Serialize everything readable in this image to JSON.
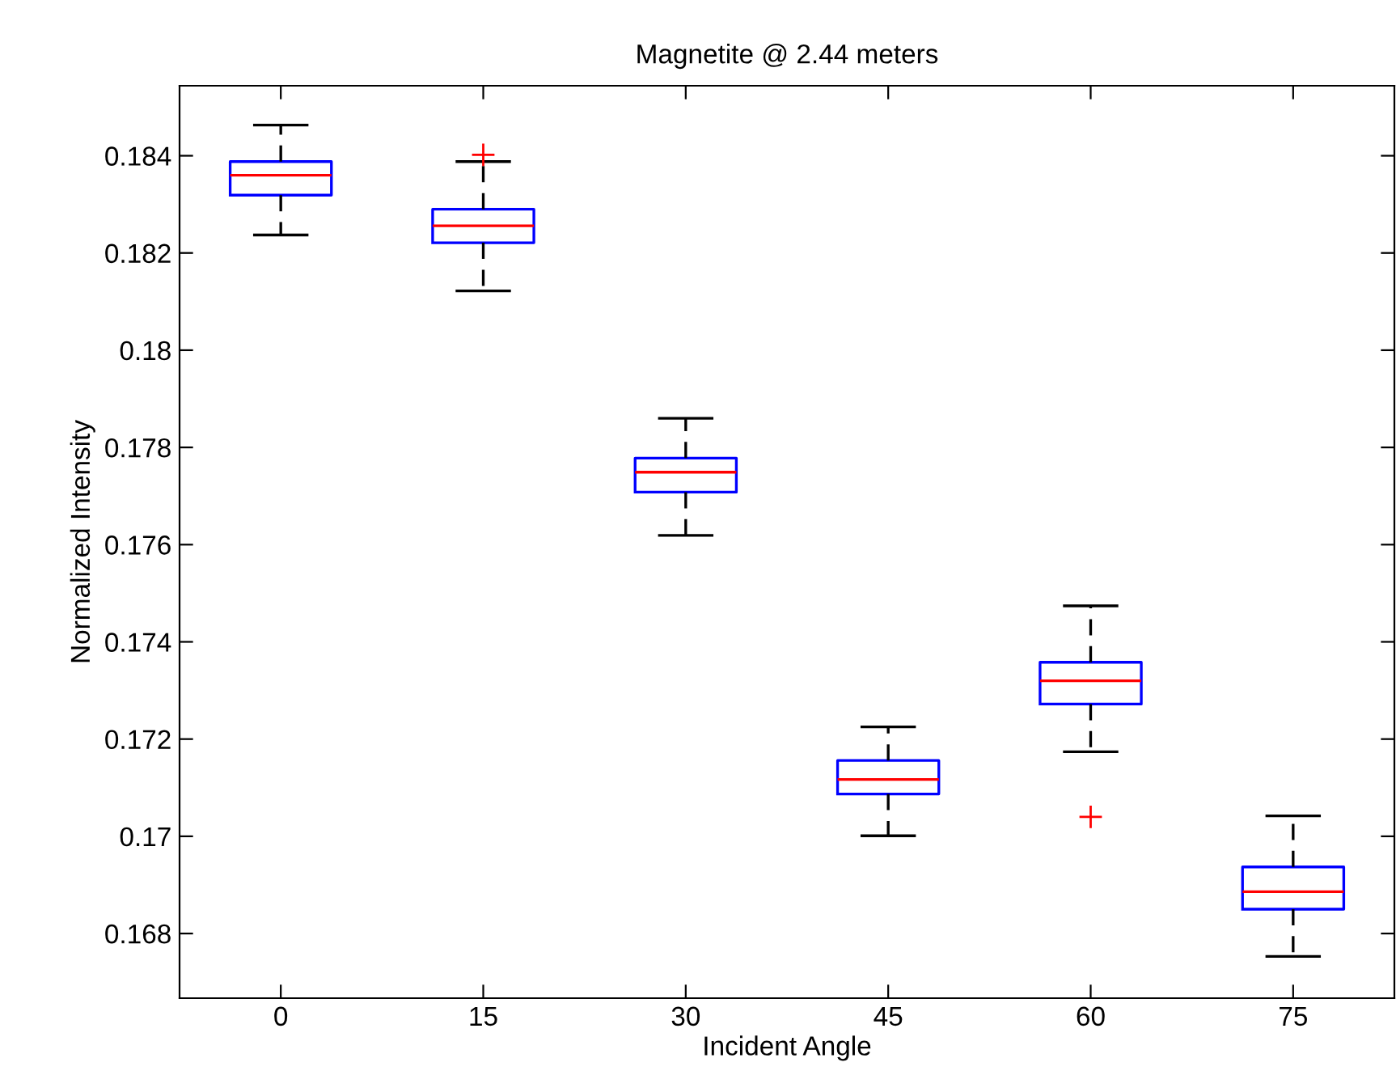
{
  "chart_data": {
    "type": "box",
    "title": "Magnetite @ 2.44 meters",
    "xlabel": "Incident Angle",
    "ylabel": "Normalized Intensity",
    "categories": [
      "0",
      "15",
      "30",
      "45",
      "60",
      "75"
    ],
    "boxes": [
      {
        "low": 0.18237,
        "q1": 0.18319,
        "median": 0.1836,
        "q3": 0.18388,
        "high": 0.18463
      },
      {
        "low": 0.18122,
        "q1": 0.18221,
        "median": 0.18256,
        "q3": 0.1829,
        "high": 0.18388,
        "outliers": [
          0.18402
        ]
      },
      {
        "low": 0.17619,
        "q1": 0.17708,
        "median": 0.17749,
        "q3": 0.17778,
        "high": 0.1786
      },
      {
        "low": 0.17001,
        "q1": 0.17087,
        "median": 0.17117,
        "q3": 0.17156,
        "high": 0.17225
      },
      {
        "low": 0.17174,
        "q1": 0.17272,
        "median": 0.1732,
        "q3": 0.17358,
        "high": 0.17474,
        "outliers": [
          0.1704
        ]
      },
      {
        "low": 0.16753,
        "q1": 0.1685,
        "median": 0.16886,
        "q3": 0.16937,
        "high": 0.17042
      }
    ],
    "ylim": [
      0.16667,
      0.18544
    ],
    "yticks": [
      0.168,
      0.17,
      0.172,
      0.174,
      0.176,
      0.178,
      0.18,
      0.182,
      0.184
    ],
    "grid": false,
    "legend": false
  }
}
